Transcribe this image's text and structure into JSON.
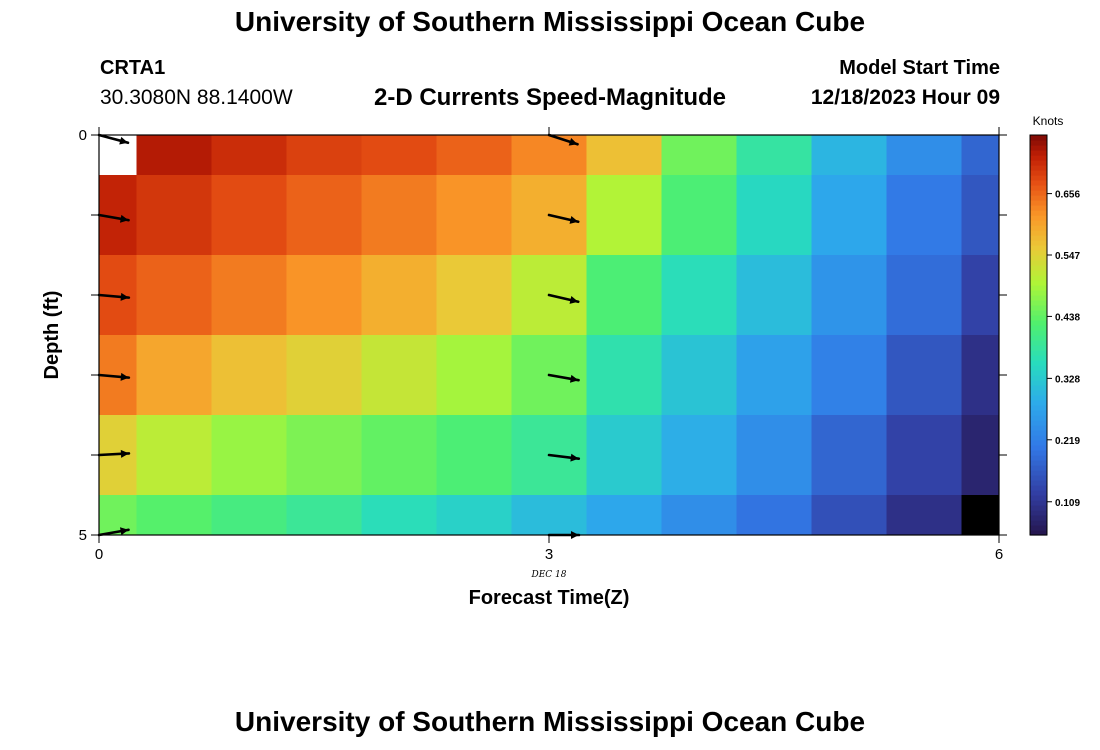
{
  "header": {
    "title": "University of Southern Mississippi Ocean Cube",
    "station_id": "CRTA1",
    "station_coords": "30.3080N  88.1400W",
    "chart_title": "2-D Currents Speed-Magnitude",
    "run_label": "Model Start Time",
    "run_time": "12/18/2023 Hour 09"
  },
  "footer": {
    "title": "University of Southern Mississippi Ocean Cube"
  },
  "chart_data": {
    "type": "heatmap",
    "xlabel": "Forecast Time(Z)",
    "ylabel": "Depth (ft)",
    "xlim": [
      0,
      6
    ],
    "ylim": [
      5,
      0
    ],
    "x_ticks": [
      0,
      3,
      6
    ],
    "y_ticks": [
      0,
      5
    ],
    "date_label": "DEC 18",
    "date_label_x": 3,
    "colorbar": {
      "unit": "Knots",
      "ticks": [
        "0.109",
        "0.219",
        "0.328",
        "0.438",
        "0.547",
        "0.656"
      ],
      "tick_values": [
        0.109,
        0.219,
        0.328,
        0.438,
        0.547,
        0.656
      ],
      "min": 0.05,
      "max": 0.76
    },
    "x": [
      0,
      0.5,
      1,
      1.5,
      2,
      2.5,
      3,
      3.5,
      4,
      4.5,
      5,
      5.5,
      6
    ],
    "depths": [
      0,
      1,
      2,
      3,
      4,
      5
    ],
    "values": [
      [
        null,
        0.73,
        0.71,
        0.69,
        0.68,
        0.66,
        0.63,
        0.57,
        0.45,
        0.38,
        0.3,
        0.24,
        0.18
      ],
      [
        0.72,
        0.7,
        0.68,
        0.66,
        0.64,
        0.62,
        0.59,
        0.5,
        0.42,
        0.35,
        0.28,
        0.21,
        0.16
      ],
      [
        0.68,
        0.66,
        0.64,
        0.62,
        0.59,
        0.56,
        0.51,
        0.42,
        0.36,
        0.31,
        0.25,
        0.19,
        0.13
      ],
      [
        0.64,
        0.6,
        0.57,
        0.55,
        0.52,
        0.49,
        0.45,
        0.37,
        0.32,
        0.27,
        0.22,
        0.16,
        0.1
      ],
      [
        0.55,
        0.51,
        0.48,
        0.46,
        0.44,
        0.42,
        0.39,
        0.33,
        0.29,
        0.24,
        0.18,
        0.13,
        0.08
      ],
      [
        0.45,
        0.43,
        0.41,
        0.39,
        0.36,
        0.34,
        0.31,
        0.28,
        0.24,
        0.2,
        0.15,
        0.1,
        0.0
      ]
    ],
    "vectors": [
      {
        "x": 0,
        "depth": 0,
        "direction_deg": 105
      },
      {
        "x": 0,
        "depth": 1,
        "direction_deg": 100
      },
      {
        "x": 0,
        "depth": 2,
        "direction_deg": 95
      },
      {
        "x": 0,
        "depth": 3,
        "direction_deg": 95
      },
      {
        "x": 0,
        "depth": 4,
        "direction_deg": 87
      },
      {
        "x": 0,
        "depth": 5,
        "direction_deg": 80
      },
      {
        "x": 3,
        "depth": 0,
        "direction_deg": 108
      },
      {
        "x": 3,
        "depth": 1,
        "direction_deg": 103
      },
      {
        "x": 3,
        "depth": 2,
        "direction_deg": 103
      },
      {
        "x": 3,
        "depth": 3,
        "direction_deg": 100
      },
      {
        "x": 3,
        "depth": 4,
        "direction_deg": 97
      },
      {
        "x": 3,
        "depth": 5,
        "direction_deg": 90
      }
    ]
  }
}
